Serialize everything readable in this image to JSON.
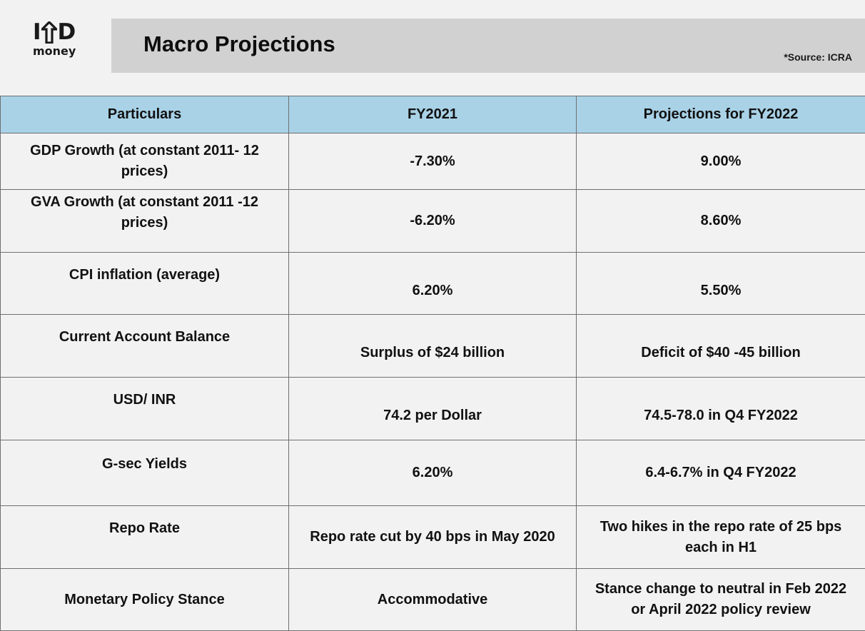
{
  "logo": {
    "top": "IND",
    "sub": "money"
  },
  "title": "Macro Projections",
  "source": "*Source: ICRA",
  "table": {
    "headers": [
      "Particulars",
      "FY2021",
      "Projections for FY2022"
    ],
    "rows": [
      [
        "GDP Growth (at constant 2011- 12 prices)",
        "-7.30%",
        "9.00%"
      ],
      [
        "GVA Growth (at constant 2011 -12 prices)",
        "-6.20%",
        "8.60%"
      ],
      [
        "CPI inflation (average)",
        "6.20%",
        "5.50%"
      ],
      [
        "Current Account Balance",
        "Surplus of $24 billion",
        "Deficit of $40 -45 billion"
      ],
      [
        "USD/ INR",
        "74.2 per Dollar",
        "74.5-78.0 in Q4 FY2022"
      ],
      [
        "G-sec Yields",
        "6.20%",
        "6.4-6.7% in Q4 FY2022"
      ],
      [
        "Repo Rate",
        "Repo rate cut by 40 bps in May 2020",
        "Two hikes in the repo rate of 25 bps each in H1"
      ],
      [
        "Monetary Policy Stance",
        "Accommodative",
        "Stance change to neutral in Feb 2022 or April 2022 policy review"
      ]
    ]
  }
}
